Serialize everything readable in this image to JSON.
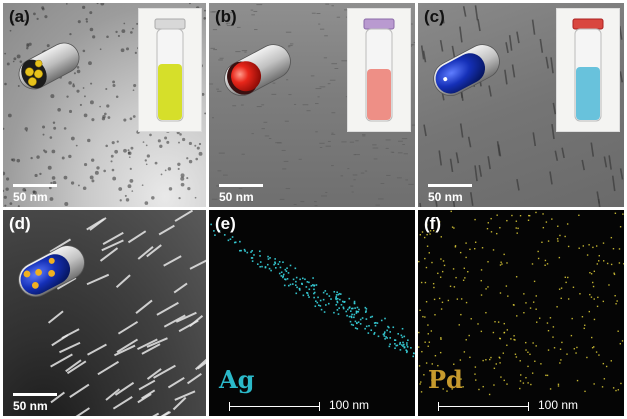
{
  "panels": {
    "a": {
      "label": "(a)",
      "scale": "50 nm",
      "vial_color": "#d6df2a"
    },
    "b": {
      "label": "(b)",
      "scale": "50 nm",
      "vial_color": "#ee8f86"
    },
    "c": {
      "label": "(c)",
      "scale": "50 nm",
      "vial_color": "#68c2dc"
    },
    "d": {
      "label": "(d)",
      "scale": "50 nm"
    },
    "e": {
      "label": "(e)",
      "element": "Ag",
      "element_color": "#2bb9c9",
      "scale": "100 nm",
      "dot_color": "#39d6e0"
    },
    "f": {
      "label": "(f)",
      "element": "Pd",
      "element_color": "#c79a2d",
      "scale": "100 nm",
      "dot_color": "#e4d23a"
    }
  }
}
